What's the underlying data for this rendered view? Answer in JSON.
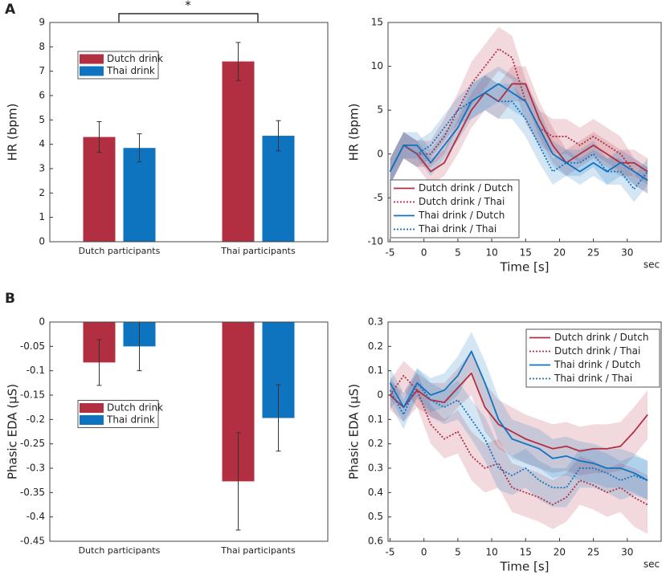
{
  "panel_labels": [
    "A",
    "B"
  ],
  "chart_data": [
    {
      "type": "bar",
      "ylabel": "HR (bpm)",
      "categories": [
        "Dutch participants",
        "Thai participants"
      ],
      "series": [
        {
          "name": "Dutch drink",
          "color": "#b22e41",
          "values": [
            4.3,
            7.4
          ],
          "errors": [
            0.63,
            0.78
          ]
        },
        {
          "name": "Thai drink",
          "color": "#0f74c0",
          "values": [
            3.85,
            4.35
          ],
          "errors": [
            0.58,
            0.62
          ]
        }
      ],
      "ylim": [
        0,
        9
      ],
      "yticks": [
        0,
        1,
        2,
        3,
        4,
        5,
        6,
        7,
        8,
        9
      ],
      "legend": "upper left",
      "annotation": "*"
    },
    {
      "type": "line",
      "ylabel": "HR (bpm)",
      "xlabel": "Time [s]",
      "x_unit": "sec",
      "x": [
        -5,
        -3,
        -1,
        1,
        3,
        5,
        7,
        9,
        11,
        13,
        15,
        17,
        19,
        21,
        23,
        25,
        27,
        29,
        31,
        33
      ],
      "series": [
        {
          "name": "Dutch drink / Dutch",
          "color": "#b22e41",
          "style": "solid",
          "values": [
            -2,
            1,
            0,
            -2,
            -1,
            2,
            5,
            7,
            6,
            8,
            8,
            4,
            1,
            -1,
            0,
            1,
            0,
            -1,
            -1,
            -2
          ],
          "errors": [
            1.5,
            1.5,
            1.5,
            1.5,
            1.5,
            2,
            2,
            2,
            2,
            2,
            2,
            2,
            2,
            1.5,
            1.5,
            1.5,
            1.5,
            1.5,
            1.5,
            1.5
          ]
        },
        {
          "name": "Dutch drink / Thai",
          "color": "#b22e41",
          "style": "dotted",
          "values": [
            -2,
            1,
            0,
            0,
            2,
            5,
            8,
            10,
            12,
            11,
            6,
            3,
            2,
            2,
            1,
            2,
            1,
            0,
            -2,
            -3
          ],
          "errors": [
            1.5,
            1.5,
            1.5,
            1.5,
            2,
            2,
            2.5,
            2.5,
            2.5,
            2.5,
            2.5,
            2,
            2,
            2,
            2,
            2,
            2,
            2,
            1.5,
            1.5
          ]
        },
        {
          "name": "Thai drink / Dutch",
          "color": "#0f74c0",
          "style": "solid",
          "values": [
            -2,
            1,
            1,
            -1,
            1,
            3,
            6,
            7,
            8,
            7,
            6,
            3,
            0,
            -1,
            -2,
            -1,
            -2,
            -1,
            -2,
            -3
          ],
          "errors": [
            1.5,
            1.5,
            1.5,
            1.5,
            1.5,
            1.5,
            2,
            2,
            2,
            2,
            2,
            2,
            1.5,
            1.5,
            1.5,
            1.5,
            1.5,
            1.5,
            1.5,
            1.5
          ]
        },
        {
          "name": "Thai drink / Thai",
          "color": "#0f74c0",
          "style": "dotted",
          "values": [
            -2,
            1,
            0,
            1,
            3,
            5,
            6,
            7,
            6,
            6,
            4,
            1,
            -2,
            -1,
            -1,
            0,
            -2,
            -2,
            -4,
            -2
          ],
          "errors": [
            1.5,
            1.5,
            1.5,
            1.5,
            1.5,
            1.5,
            2,
            2,
            2,
            2,
            2,
            2,
            1.5,
            1.5,
            1.5,
            1.5,
            1.5,
            1.5,
            1.5,
            1.5
          ]
        }
      ],
      "xlim": [
        -5.3,
        35
      ],
      "xticks": [
        -5,
        0,
        5,
        10,
        15,
        20,
        25,
        30
      ],
      "ylim": [
        -10,
        15
      ],
      "yticks": [
        -10,
        -5,
        0,
        5,
        10,
        15
      ],
      "legend": "lower left"
    },
    {
      "type": "bar",
      "ylabel": "Phasic EDA (μS)",
      "categories": [
        "Dutch participants",
        "Thai participants"
      ],
      "series": [
        {
          "name": "Dutch drink",
          "color": "#b22e41",
          "values": [
            -0.083,
            -0.327
          ],
          "errors": [
            0.047,
            0.1
          ]
        },
        {
          "name": "Thai drink",
          "color": "#0f74c0",
          "values": [
            -0.05,
            -0.197
          ],
          "errors": [
            0.05,
            0.068
          ]
        }
      ],
      "ylim": [
        -0.45,
        0
      ],
      "yticks": [
        -0.45,
        -0.4,
        -0.35,
        -0.3,
        -0.25,
        -0.2,
        -0.15,
        -0.1,
        -0.05,
        0
      ],
      "legend": "center left"
    },
    {
      "type": "line",
      "ylabel": "Phasic EDA (μS)",
      "xlabel": "Time [s]",
      "x_unit": "sec",
      "x": [
        -5,
        -3,
        -1,
        1,
        3,
        5,
        7,
        9,
        11,
        13,
        15,
        17,
        19,
        21,
        23,
        25,
        27,
        29,
        31,
        33
      ],
      "series": [
        {
          "name": "Dutch drink / Dutch",
          "color": "#b22e41",
          "style": "solid",
          "values": [
            0,
            -0.05,
            0.02,
            -0.02,
            -0.03,
            0.03,
            0.09,
            -0.05,
            -0.12,
            -0.15,
            -0.18,
            -0.2,
            -0.22,
            -0.21,
            -0.23,
            -0.22,
            -0.22,
            -0.21,
            -0.15,
            -0.08
          ],
          "errors": [
            0.06,
            0.06,
            0.07,
            0.07,
            0.08,
            0.08,
            0.09,
            0.1,
            0.1,
            0.1,
            0.1,
            0.1,
            0.1,
            0.1,
            0.1,
            0.1,
            0.1,
            0.1,
            0.1,
            0.1
          ]
        },
        {
          "name": "Dutch drink / Thai",
          "color": "#b22e41",
          "style": "dotted",
          "values": [
            0,
            0.08,
            0.02,
            -0.12,
            -0.18,
            -0.15,
            -0.25,
            -0.3,
            -0.28,
            -0.38,
            -0.4,
            -0.42,
            -0.45,
            -0.42,
            -0.35,
            -0.37,
            -0.4,
            -0.38,
            -0.42,
            -0.45
          ],
          "errors": [
            0.06,
            0.06,
            0.07,
            0.08,
            0.08,
            0.09,
            0.1,
            0.1,
            0.1,
            0.1,
            0.1,
            0.1,
            0.1,
            0.1,
            0.1,
            0.1,
            0.1,
            0.1,
            0.12,
            0.12
          ]
        },
        {
          "name": "Thai drink / Dutch",
          "color": "#0f74c0",
          "style": "solid",
          "values": [
            0.05,
            -0.05,
            0.05,
            0,
            0.02,
            0.08,
            0.18,
            0.05,
            -0.1,
            -0.18,
            -0.2,
            -0.22,
            -0.26,
            -0.25,
            -0.27,
            -0.28,
            -0.3,
            -0.3,
            -0.32,
            -0.35
          ],
          "errors": [
            0.06,
            0.06,
            0.06,
            0.07,
            0.07,
            0.08,
            0.08,
            0.09,
            0.09,
            0.08,
            0.08,
            0.08,
            0.08,
            0.08,
            0.08,
            0.08,
            0.08,
            0.08,
            0.08,
            0.08
          ]
        },
        {
          "name": "Thai drink / Thai",
          "color": "#0f74c0",
          "style": "dotted",
          "values": [
            0.02,
            -0.08,
            0.05,
            -0.02,
            -0.05,
            -0.02,
            -0.1,
            -0.18,
            -0.3,
            -0.33,
            -0.3,
            -0.35,
            -0.38,
            -0.38,
            -0.3,
            -0.3,
            -0.32,
            -0.35,
            -0.33,
            -0.35
          ],
          "errors": [
            0.06,
            0.06,
            0.06,
            0.07,
            0.07,
            0.08,
            0.08,
            0.09,
            0.09,
            0.08,
            0.08,
            0.08,
            0.08,
            0.08,
            0.08,
            0.08,
            0.08,
            0.08,
            0.08,
            0.08
          ]
        }
      ],
      "xlim": [
        -5.3,
        35
      ],
      "xticks": [
        -5,
        0,
        5,
        10,
        15,
        20,
        25,
        30
      ],
      "ylim": [
        -0.6,
        0.3
      ],
      "yticks": [
        {
          "value": -0.6,
          "label": "0.6"
        },
        {
          "value": -0.5,
          "label": "0.5"
        },
        {
          "value": -0.4,
          "label": "0.4"
        },
        {
          "value": -0.3,
          "label": "0.3"
        },
        {
          "value": -0.2,
          "label": "0.2"
        },
        {
          "value": -0.1,
          "label": "0.1"
        },
        0,
        0.1,
        0.2,
        0.3
      ],
      "legend": "upper right"
    }
  ]
}
